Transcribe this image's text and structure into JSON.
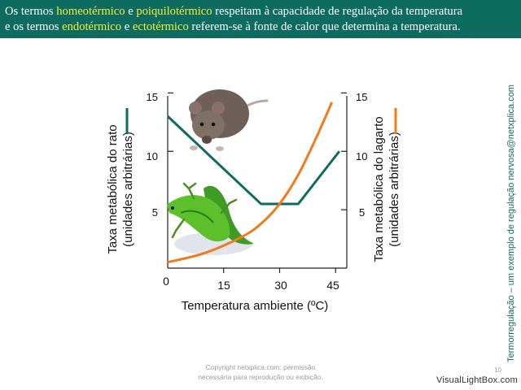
{
  "header": {
    "line1": {
      "t1": "Os termos ",
      "k1": "homeotérmico",
      "t2": " e ",
      "k2": "poiquilotérmico",
      "t3": " respeitam à capacidade de regulação da temperatura"
    },
    "line2": {
      "t1": "e os termos ",
      "k1": "endotérmico",
      "t2": " e ",
      "k2": "ectotérmico",
      "t3": " referem-se à fonte de calor que determina a temperatura."
    }
  },
  "side_caption": "Termorregulação – um exemplo de regulação nervosa@netxplica.com",
  "footer": {
    "copyright_line1": "Copyright netxplica.com: permissão",
    "copyright_line2": "necessária para reprodução ou exibição.",
    "slide_number": "10",
    "watermark": "VisualLightBox.com"
  },
  "colors": {
    "header_bg": "#0e6b60",
    "highlight": "#f2ef3a",
    "rat_series": "#0e6b60",
    "lizard_series": "#f07a1e"
  },
  "chart_data": {
    "type": "line",
    "xlabel": "Temperatura ambiente (ºC)",
    "x_ticks": [
      "0",
      "15",
      "30",
      "45"
    ],
    "xlim": [
      0,
      48
    ],
    "ylabel_left_line1": "Taxa metabólica do rato",
    "ylabel_left_line2": "(unidades arbitrárias)",
    "ylabel_right_line1": "Taxa metabólica do lagarto",
    "ylabel_right_line2": "(unidades arbitrárias)",
    "y_ticks_left": [
      "5",
      "10",
      "15"
    ],
    "y_ticks_right": [
      "5",
      "10",
      "15"
    ],
    "ylim": [
      0,
      16
    ],
    "grid": false,
    "series": [
      {
        "color": "#0e6b60",
        "x": [
          0,
          25,
          35,
          46
        ],
        "y": [
          13,
          5.5,
          5.5,
          10
        ]
      },
      {
        "color": "#f07a1e",
        "x": [
          0,
          10,
          20,
          25,
          30,
          35,
          40,
          44
        ],
        "y": [
          0.5,
          1.3,
          2.7,
          3.8,
          5.5,
          8.0,
          11.3,
          14.2
        ]
      }
    ]
  }
}
